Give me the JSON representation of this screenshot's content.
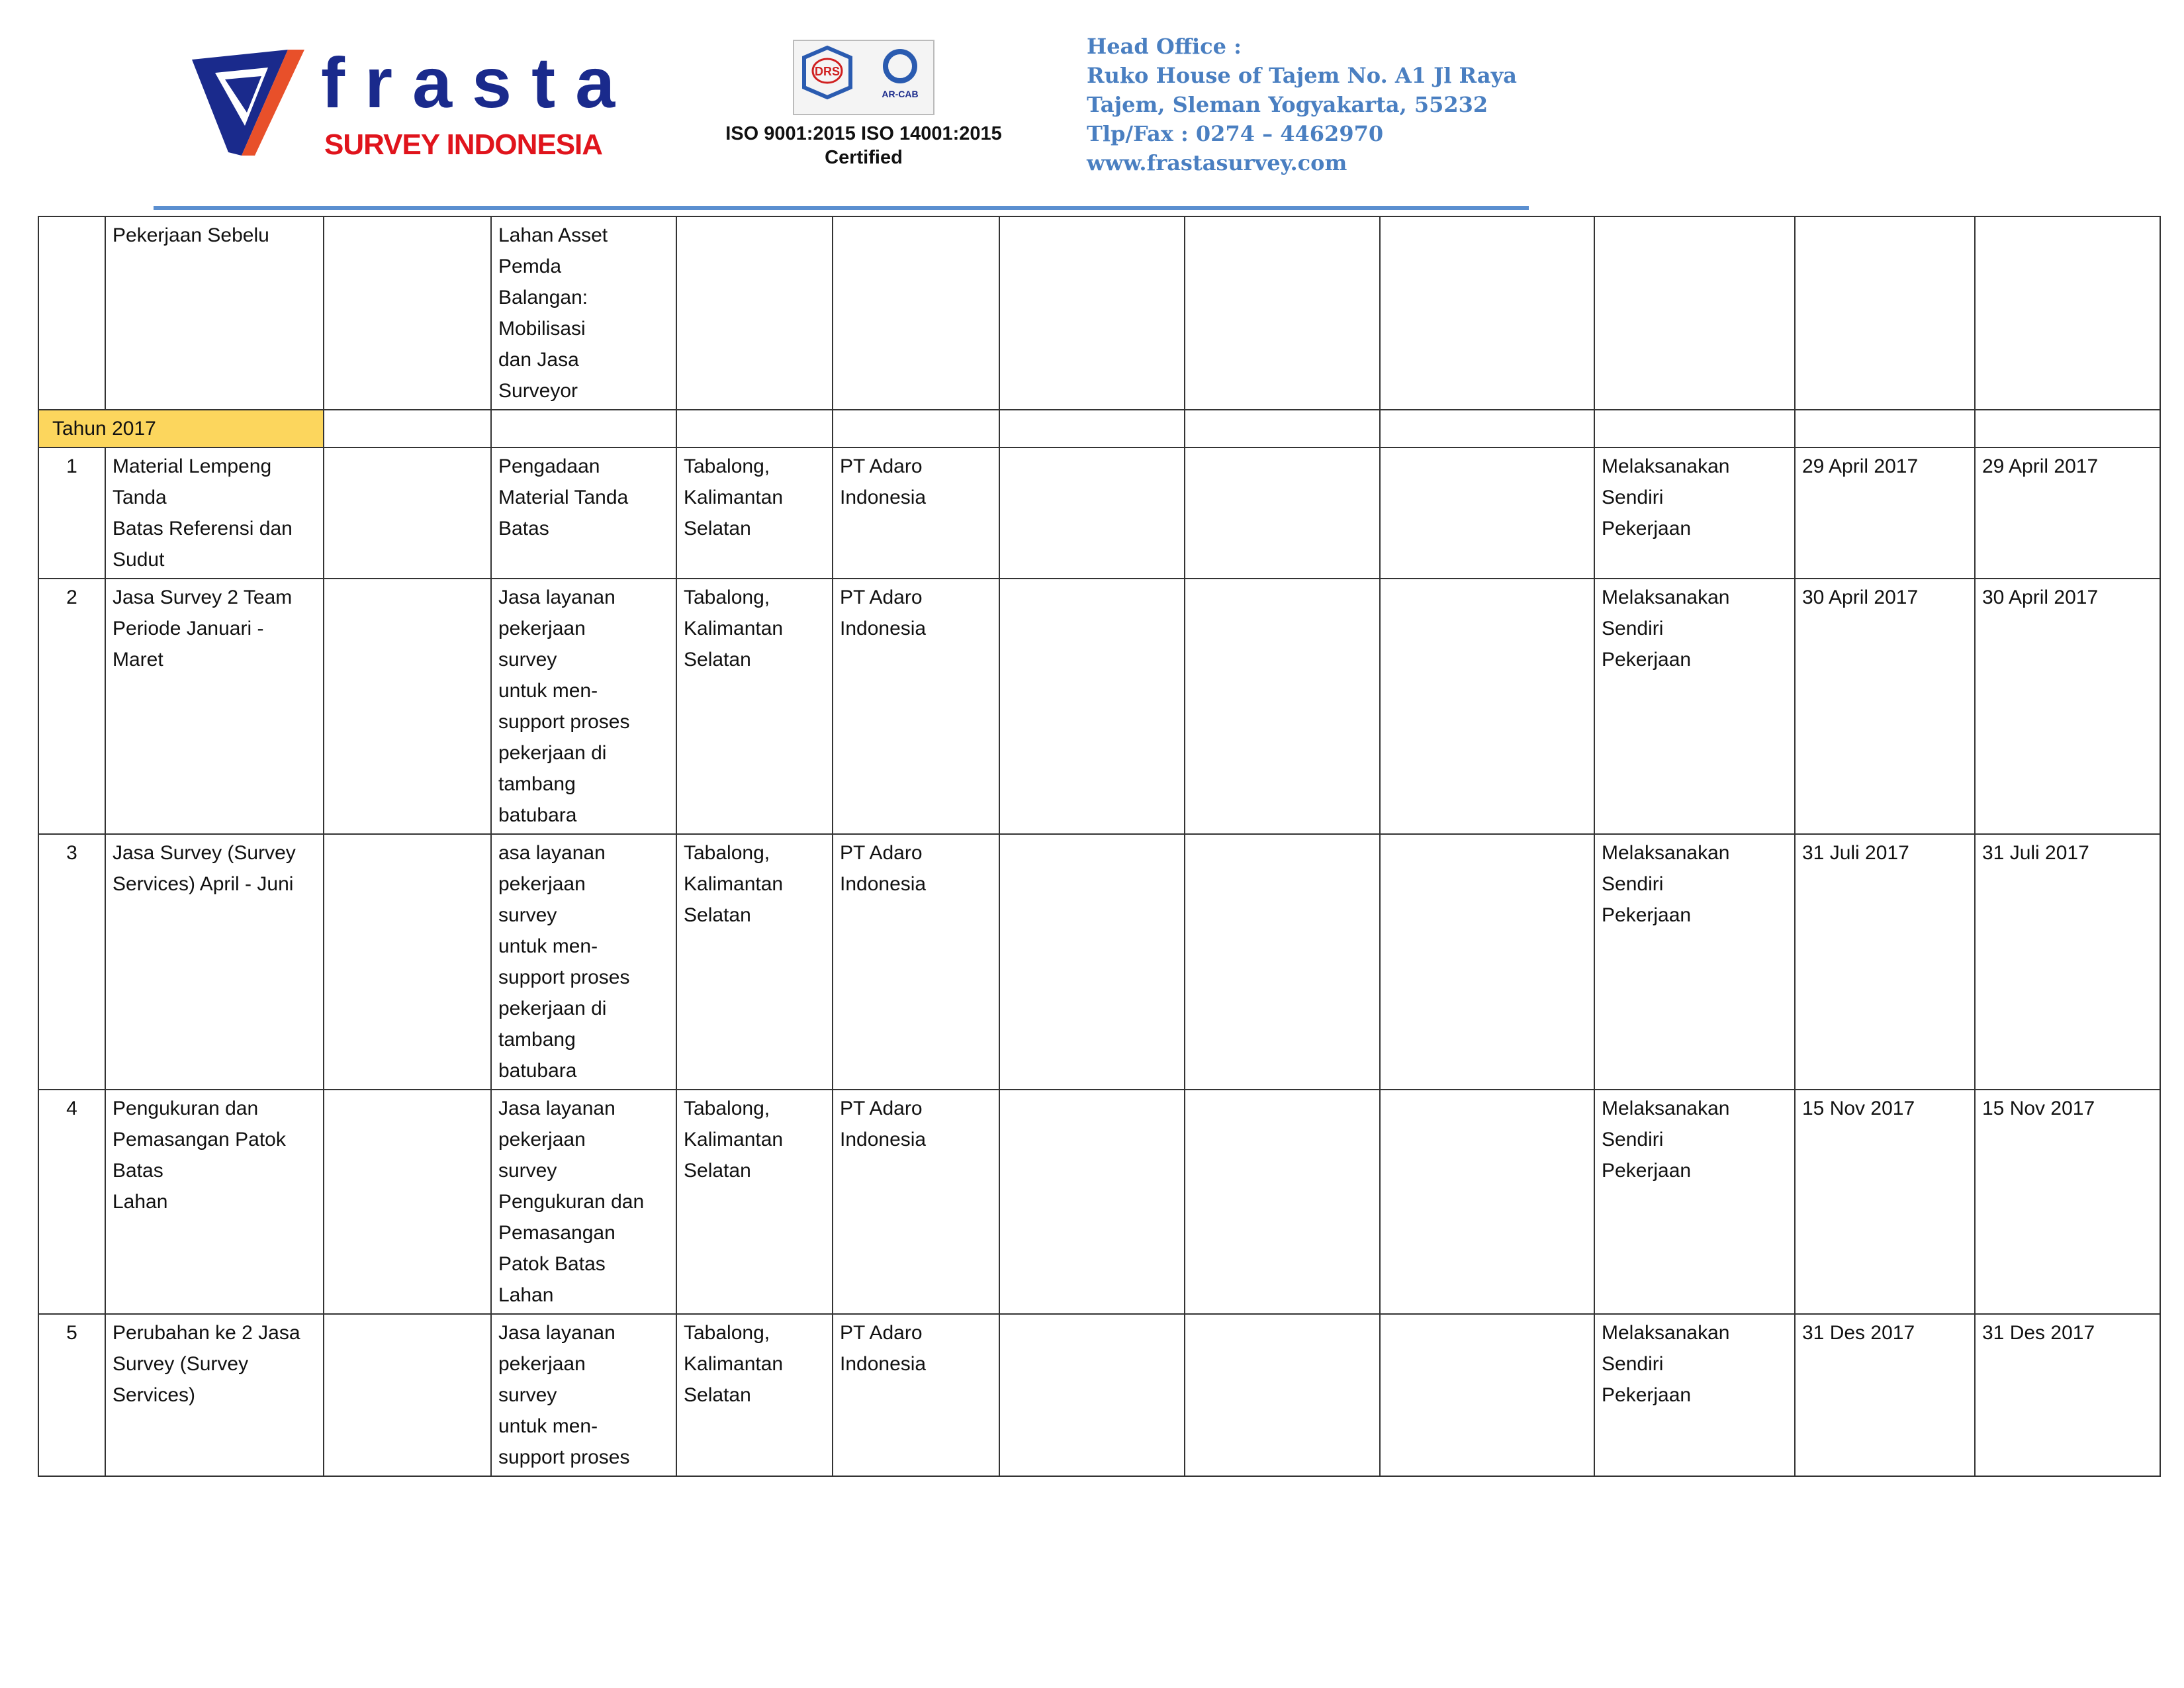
{
  "header": {
    "logo_word": "frasta",
    "logo_sub": "SURVEY INDONESIA",
    "cert_badge_labels": [
      "DRS",
      "AR-CAB"
    ],
    "cert_line1": "ISO 9001:2015  ISO 14001:2015",
    "cert_line2": "Certified",
    "office_lines": [
      "Head  Office :",
      "Ruko House of Tajem No. A1 Jl Raya",
      "Tajem, Sleman Yogyakarta, 55232",
      "Tlp/Fax : 0274 – 4462970",
      "www.frastasurvey.com"
    ],
    "colors": {
      "brand_blue": "#1a2a8c",
      "brand_red": "#e0141c",
      "office_blue": "#4a7fc1",
      "rule": "#5b8fd0",
      "year_highlight": "#fcd65d"
    }
  },
  "table": {
    "continued_row": {
      "no": "",
      "name": [
        "Pekerjaan Sebelu"
      ],
      "desc": [
        "Lahan Asset",
        "Pemda",
        "Balangan:",
        "Mobilisasi",
        "dan Jasa",
        "Surveyor"
      ]
    },
    "year_label": "Tahun 2017",
    "rows": [
      {
        "no": "1",
        "name": [
          "Material Lempeng",
          "Tanda",
          "Batas Referensi dan",
          "Sudut"
        ],
        "desc": [
          "Pengadaan",
          "Material Tanda",
          "Batas"
        ],
        "location": [
          "Tabalong,",
          "Kalimantan",
          "Selatan"
        ],
        "client": [
          "PT Adaro",
          "Indonesia"
        ],
        "executor": [
          "Melaksanakan",
          "Sendiri",
          "Pekerjaan"
        ],
        "start": "29 April 2017",
        "end": "29 April 2017"
      },
      {
        "no": "2",
        "name": [
          "Jasa Survey 2 Team",
          "Periode Januari -",
          "Maret"
        ],
        "desc": [
          "Jasa layanan",
          "pekerjaan",
          "survey",
          "untuk men-",
          "support proses",
          "pekerjaan di",
          "tambang",
          "batubara"
        ],
        "location": [
          "Tabalong,",
          "Kalimantan",
          "Selatan"
        ],
        "client": [
          "PT Adaro",
          "Indonesia"
        ],
        "executor": [
          "Melaksanakan",
          "Sendiri",
          "Pekerjaan"
        ],
        "start": "30 April 2017",
        "end": "30 April 2017"
      },
      {
        "no": "3",
        "name": [
          "Jasa Survey (Survey",
          "Services) April - Juni"
        ],
        "desc": [
          "asa layanan",
          "pekerjaan",
          "survey",
          "untuk men-",
          "support proses",
          "pekerjaan di",
          "tambang",
          "batubara"
        ],
        "location": [
          "Tabalong,",
          "Kalimantan",
          "Selatan"
        ],
        "client": [
          "PT Adaro",
          "Indonesia"
        ],
        "executor": [
          "Melaksanakan",
          "Sendiri",
          "Pekerjaan"
        ],
        "start": "31 Juli 2017",
        "end": "31 Juli 2017"
      },
      {
        "no": "4",
        "name": [
          "Pengukuran dan",
          "Pemasangan Patok",
          "Batas",
          "Lahan"
        ],
        "desc": [
          "Jasa layanan",
          "pekerjaan",
          "survey",
          "Pengukuran dan",
          "Pemasangan",
          "Patok Batas",
          "Lahan"
        ],
        "location": [
          "Tabalong,",
          "Kalimantan",
          "Selatan"
        ],
        "client": [
          "PT Adaro",
          "Indonesia"
        ],
        "executor": [
          "Melaksanakan",
          "Sendiri",
          "Pekerjaan"
        ],
        "start": "15 Nov 2017",
        "end": "15 Nov 2017"
      },
      {
        "no": "5",
        "name": [
          "Perubahan ke 2 Jasa",
          "Survey (Survey",
          "Services)"
        ],
        "desc": [
          "Jasa layanan",
          "pekerjaan",
          "survey",
          "untuk men-",
          "support proses"
        ],
        "location": [
          "Tabalong,",
          "Kalimantan",
          "Selatan"
        ],
        "client": [
          "PT Adaro",
          "Indonesia"
        ],
        "executor": [
          "Melaksanakan",
          "Sendiri",
          "Pekerjaan"
        ],
        "start": "31 Des 2017",
        "end": "31 Des 2017"
      }
    ]
  }
}
